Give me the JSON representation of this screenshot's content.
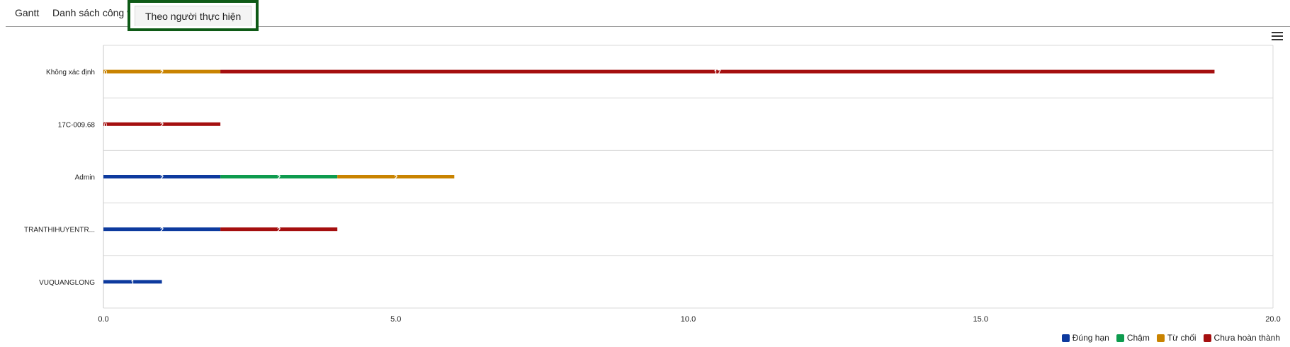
{
  "tabs": [
    {
      "label": "Gantt",
      "active": false
    },
    {
      "label": "Danh sách công việc",
      "active": false
    },
    {
      "label": "Theo người thực hiện",
      "active": true
    }
  ],
  "chart_data": {
    "type": "bar",
    "orientation": "horizontal",
    "stacked": true,
    "categories": [
      "Không xác định",
      "17C-009.68",
      "Admin",
      "TRANTHIHUYENTR...",
      "VUQUANGLONG"
    ],
    "series": [
      {
        "name": "Đúng hạn",
        "color": "#0d3a9e",
        "values": [
          0,
          0,
          2,
          2,
          1
        ]
      },
      {
        "name": "Chậm",
        "color": "#0d9b4e",
        "values": [
          0,
          0,
          2,
          0,
          0
        ]
      },
      {
        "name": "Từ chối",
        "color": "#c98300",
        "values": [
          2,
          0,
          2,
          0,
          0
        ]
      },
      {
        "name": "Chưa hoàn thành",
        "color": "#a50f0f",
        "values": [
          17,
          2,
          0,
          2,
          0
        ]
      }
    ],
    "segment_labels": [
      [
        "0",
        "2",
        "17"
      ],
      [
        "0",
        "2"
      ],
      [
        "2",
        "2",
        "2"
      ],
      [
        "2",
        "2"
      ],
      [
        "1"
      ]
    ],
    "xlim": [
      0,
      20
    ],
    "xticks": [
      "0.0",
      "5.0",
      "10.0",
      "15.0",
      "20.0"
    ],
    "grid": true,
    "legend_position": "bottom-right",
    "title": "",
    "xlabel": "",
    "ylabel": ""
  }
}
